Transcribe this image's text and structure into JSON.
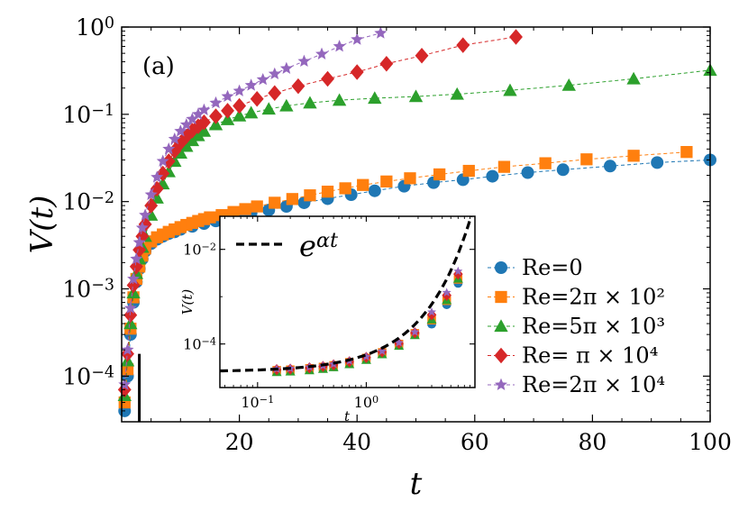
{
  "chart_data": [
    {
      "type": "scatter",
      "panel_label": "(a)",
      "xlabel": "t",
      "ylabel": "V(t)",
      "xlim": [
        0,
        100
      ],
      "ylim": [
        3e-05,
        1
      ],
      "yscale": "log",
      "xticks": [
        20,
        40,
        60,
        80,
        100
      ],
      "xtick_labels": [
        "20",
        "40",
        "60",
        "80",
        "100"
      ],
      "yticks": [
        0.0001,
        0.001,
        0.01,
        0.1,
        1
      ],
      "ytick_labels": [
        {
          "base": "10",
          "exp": "−4"
        },
        {
          "base": "10",
          "exp": "−3"
        },
        {
          "base": "10",
          "exp": "−2"
        },
        {
          "base": "10",
          "exp": "−1"
        },
        {
          "base": "10",
          "exp": "0"
        }
      ],
      "vertical_line": {
        "x": 3,
        "y_top": 0.00018
      },
      "legend_position": "lower-right",
      "series": [
        {
          "name": "Re=0",
          "color": "#1f77b4",
          "marker": "circle",
          "x": [
            0.5,
            1,
            1.5,
            2,
            2.5,
            3,
            3.5,
            4,
            5,
            6,
            7,
            8,
            9,
            10,
            12,
            14,
            16,
            18,
            20,
            22,
            25,
            28,
            31,
            35,
            39,
            43,
            48,
            53,
            58,
            63,
            69,
            75,
            83,
            91,
            100
          ],
          "y": [
            4e-05,
            0.0001,
            0.0003,
            0.0007,
            0.0012,
            0.0017,
            0.0022,
            0.0027,
            0.0033,
            0.0037,
            0.004,
            0.0043,
            0.0045,
            0.0048,
            0.0052,
            0.0056,
            0.006,
            0.0064,
            0.0069,
            0.0074,
            0.008,
            0.0088,
            0.0097,
            0.0108,
            0.012,
            0.0133,
            0.015,
            0.0165,
            0.0178,
            0.0195,
            0.0215,
            0.0232,
            0.0255,
            0.028,
            0.03
          ]
        },
        {
          "name": "Re=2π × 10²",
          "color": "#ff7f0e",
          "marker": "square",
          "x": [
            0.5,
            1,
            1.5,
            2,
            2.5,
            3,
            3.5,
            4,
            5,
            6,
            7,
            8,
            9,
            10,
            11,
            12,
            13,
            14,
            15,
            17,
            19,
            21,
            23,
            26,
            29,
            32,
            35,
            38,
            41,
            45,
            49,
            54,
            59,
            65,
            72,
            79,
            87,
            96
          ],
          "y": [
            5e-05,
            0.00012,
            0.00035,
            0.0008,
            0.0013,
            0.0018,
            0.0024,
            0.0029,
            0.0035,
            0.0039,
            0.0042,
            0.0045,
            0.0048,
            0.0051,
            0.0054,
            0.0057,
            0.006,
            0.0063,
            0.0066,
            0.007,
            0.0076,
            0.0082,
            0.0088,
            0.0097,
            0.0107,
            0.0118,
            0.013,
            0.0142,
            0.0155,
            0.017,
            0.0185,
            0.0205,
            0.0225,
            0.025,
            0.0275,
            0.0305,
            0.0335,
            0.037
          ]
        },
        {
          "name": "Re=5π × 10³",
          "color": "#2ca02c",
          "marker": "triangle",
          "x": [
            0.5,
            1,
            1.5,
            2,
            2.5,
            3,
            3.5,
            4,
            5,
            6,
            7,
            8,
            9,
            10,
            11,
            12,
            13,
            14,
            16,
            18,
            20,
            22,
            25,
            28,
            32,
            37,
            43,
            50,
            57,
            66,
            76,
            87,
            100
          ],
          "y": [
            6e-05,
            0.00015,
            0.0004,
            0.0009,
            0.0015,
            0.0022,
            0.003,
            0.004,
            0.007,
            0.011,
            0.016,
            0.022,
            0.029,
            0.036,
            0.043,
            0.05,
            0.057,
            0.064,
            0.076,
            0.087,
            0.096,
            0.104,
            0.115,
            0.125,
            0.135,
            0.145,
            0.153,
            0.16,
            0.17,
            0.188,
            0.215,
            0.255,
            0.32
          ]
        },
        {
          "name": "Re=  π × 10⁴",
          "color": "#d62728",
          "marker": "diamond",
          "x": [
            0.5,
            1,
            1.5,
            2,
            2.5,
            3,
            3.5,
            4,
            5,
            6,
            7,
            8,
            9,
            10,
            11,
            12,
            13,
            14,
            16,
            18,
            20,
            23,
            26,
            30,
            35,
            40,
            45,
            51,
            58,
            67
          ],
          "y": [
            7e-05,
            0.00018,
            0.0005,
            0.0011,
            0.0018,
            0.0028,
            0.004,
            0.0055,
            0.009,
            0.014,
            0.021,
            0.029,
            0.038,
            0.047,
            0.056,
            0.065,
            0.073,
            0.081,
            0.095,
            0.11,
            0.125,
            0.15,
            0.175,
            0.21,
            0.255,
            0.305,
            0.38,
            0.47,
            0.62,
            0.77
          ]
        },
        {
          "name": "Re=2π × 10⁴",
          "color": "#9467bd",
          "marker": "star",
          "x": [
            0.5,
            1,
            1.5,
            2,
            2.5,
            3,
            3.5,
            4,
            5,
            6,
            7,
            8,
            9,
            10,
            11,
            12,
            13,
            14,
            16,
            18,
            20,
            22,
            24,
            26,
            28,
            31,
            34,
            37,
            40,
            44
          ],
          "y": [
            8e-05,
            0.0002,
            0.0006,
            0.0013,
            0.0022,
            0.0034,
            0.005,
            0.007,
            0.012,
            0.019,
            0.029,
            0.04,
            0.052,
            0.064,
            0.076,
            0.088,
            0.1,
            0.112,
            0.135,
            0.16,
            0.185,
            0.215,
            0.25,
            0.29,
            0.335,
            0.405,
            0.49,
            0.6,
            0.72,
            0.85
          ]
        }
      ]
    },
    {
      "type": "scatter",
      "inset": true,
      "xlabel": "t",
      "ylabel": "V(t)",
      "xscale": "log",
      "yscale": "log",
      "xlim": [
        0.045,
        10
      ],
      "ylim": [
        1.2e-05,
        0.05
      ],
      "xticks": [
        0.1,
        1
      ],
      "xtick_labels": [
        {
          "base": "10",
          "exp": "−1"
        },
        {
          "base": "10",
          "exp": "0"
        }
      ],
      "yticks": [
        0.0001,
        0.01
      ],
      "ytick_labels": [
        {
          "base": "10",
          "exp": "−4"
        },
        {
          "base": "10",
          "exp": "−2"
        }
      ],
      "fit_line": {
        "label": {
          "base": "e",
          "exp": "αt"
        },
        "color": "#000000",
        "style": "dashed"
      },
      "series_x": [
        0.15,
        0.2,
        0.3,
        0.4,
        0.5,
        0.7,
        1.0,
        1.4,
        2.0,
        2.8,
        4.0,
        5.5,
        7.0
      ],
      "series_y": [
        2.65e-05,
        2.72e-05,
        2.9e-05,
        3.1e-05,
        3.35e-05,
        3.9e-05,
        4.8e-05,
        6.3e-05,
        9.5e-05,
        0.00016,
        0.00033,
        0.00085,
        0.0024
      ]
    }
  ]
}
